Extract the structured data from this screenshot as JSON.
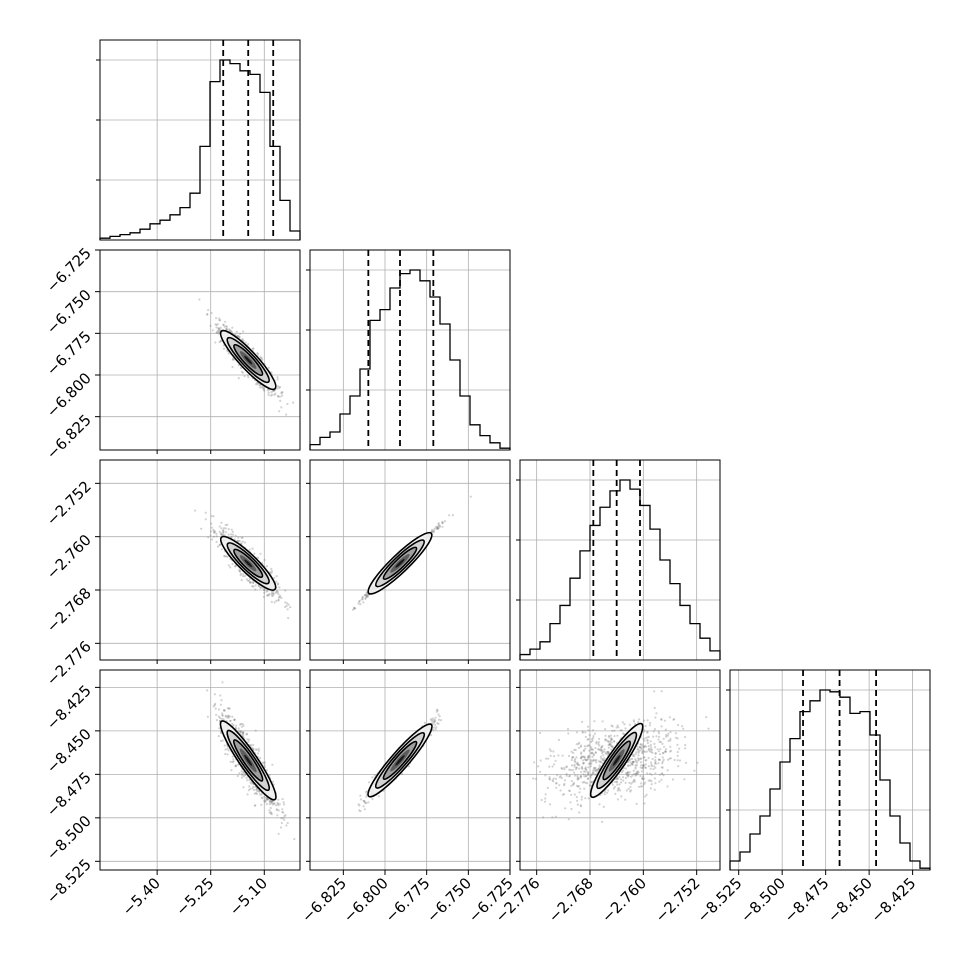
{
  "chart_data": {
    "type": "corner",
    "grid": true,
    "colors": {
      "hist": "#000000",
      "quantile": "#000000",
      "points": "#7f7f7f",
      "contour": "#000000"
    },
    "parameters": [
      {
        "range": [
          -5.56,
          -5.0
        ],
        "quantiles": [
          -5.215,
          -5.145,
          -5.075
        ],
        "ticks": [
          -5.4,
          -5.25,
          -5.1
        ],
        "tick_labels": [
          "−5.40",
          "−5.25",
          "−5.10"
        ]
      },
      {
        "range": [
          -6.845,
          -6.725
        ],
        "quantiles": [
          -6.81,
          -6.791,
          -6.771
        ],
        "ticks": [
          -6.825,
          -6.8,
          -6.775,
          -6.75,
          -6.725
        ],
        "tick_labels": [
          "−6.825",
          "−6.800",
          "−6.775",
          "−6.750",
          "−6.725"
        ]
      },
      {
        "range": [
          -2.7785,
          -2.7485
        ],
        "quantiles": [
          -2.7675,
          -2.764,
          -2.7605
        ],
        "ticks": [
          -2.776,
          -2.768,
          -2.76,
          -2.752
        ],
        "tick_labels": [
          "−2.776",
          "−2.768",
          "−2.760",
          "−2.752"
        ]
      },
      {
        "range": [
          -8.53,
          -8.415
        ],
        "quantiles": [
          -8.488,
          -8.467,
          -8.446
        ],
        "ticks": [
          -8.525,
          -8.5,
          -8.475,
          -8.45,
          -8.425
        ],
        "tick_labels": [
          "−8.525",
          "−8.500",
          "−8.475",
          "−8.450",
          "−8.425"
        ]
      }
    ],
    "histograms": [
      {
        "bin_edges_range": [
          -5.56,
          -5.0
        ],
        "counts": [
          1,
          2,
          3,
          4,
          6,
          9,
          11,
          14,
          18,
          26,
          52,
          88,
          100,
          98,
          94,
          92,
          82,
          52,
          22,
          5
        ]
      },
      {
        "bin_edges_range": [
          -6.845,
          -6.725
        ],
        "counts": [
          3,
          7,
          10,
          20,
          30,
          45,
          72,
          78,
          90,
          98,
          100,
          94,
          85,
          70,
          50,
          30,
          14,
          8,
          4,
          1
        ]
      },
      {
        "bin_edges_range": [
          -2.7785,
          -2.7485
        ],
        "counts": [
          3,
          6,
          10,
          20,
          30,
          45,
          60,
          74,
          84,
          93,
          99,
          94,
          85,
          72,
          55,
          42,
          30,
          20,
          12,
          5
        ]
      },
      {
        "bin_edges_range": [
          -8.53,
          -8.415
        ],
        "counts": [
          5,
          10,
          20,
          30,
          45,
          60,
          73,
          88,
          94,
          100,
          99,
          96,
          87,
          88,
          75,
          50,
          30,
          15,
          5,
          1
        ]
      }
    ],
    "pairs": [
      {
        "row": 1,
        "col": 0,
        "center": [
          -5.145,
          -6.791
        ],
        "slope": -0.23,
        "major": 0.12,
        "minor": 0.008
      },
      {
        "row": 2,
        "col": 0,
        "center": [
          -5.145,
          -2.764
        ],
        "slope": -0.052,
        "major": 0.12,
        "minor": 0.0022
      },
      {
        "row": 3,
        "col": 0,
        "center": [
          -5.145,
          -8.467
        ],
        "slope": -0.3,
        "major": 0.12,
        "minor": 0.012
      },
      {
        "row": 2,
        "col": 1,
        "center": [
          -6.791,
          -2.764
        ],
        "slope": 0.24,
        "major": 0.03,
        "minor": 0.0004
      },
      {
        "row": 3,
        "col": 1,
        "center": [
          -6.791,
          -8.467
        ],
        "slope": 1.1,
        "major": 0.03,
        "minor": 0.0025
      },
      {
        "row": 3,
        "col": 2,
        "center": [
          -2.764,
          -8.467
        ],
        "slope": 5.6,
        "major": 0.006,
        "minor": 0.0015
      }
    ]
  }
}
